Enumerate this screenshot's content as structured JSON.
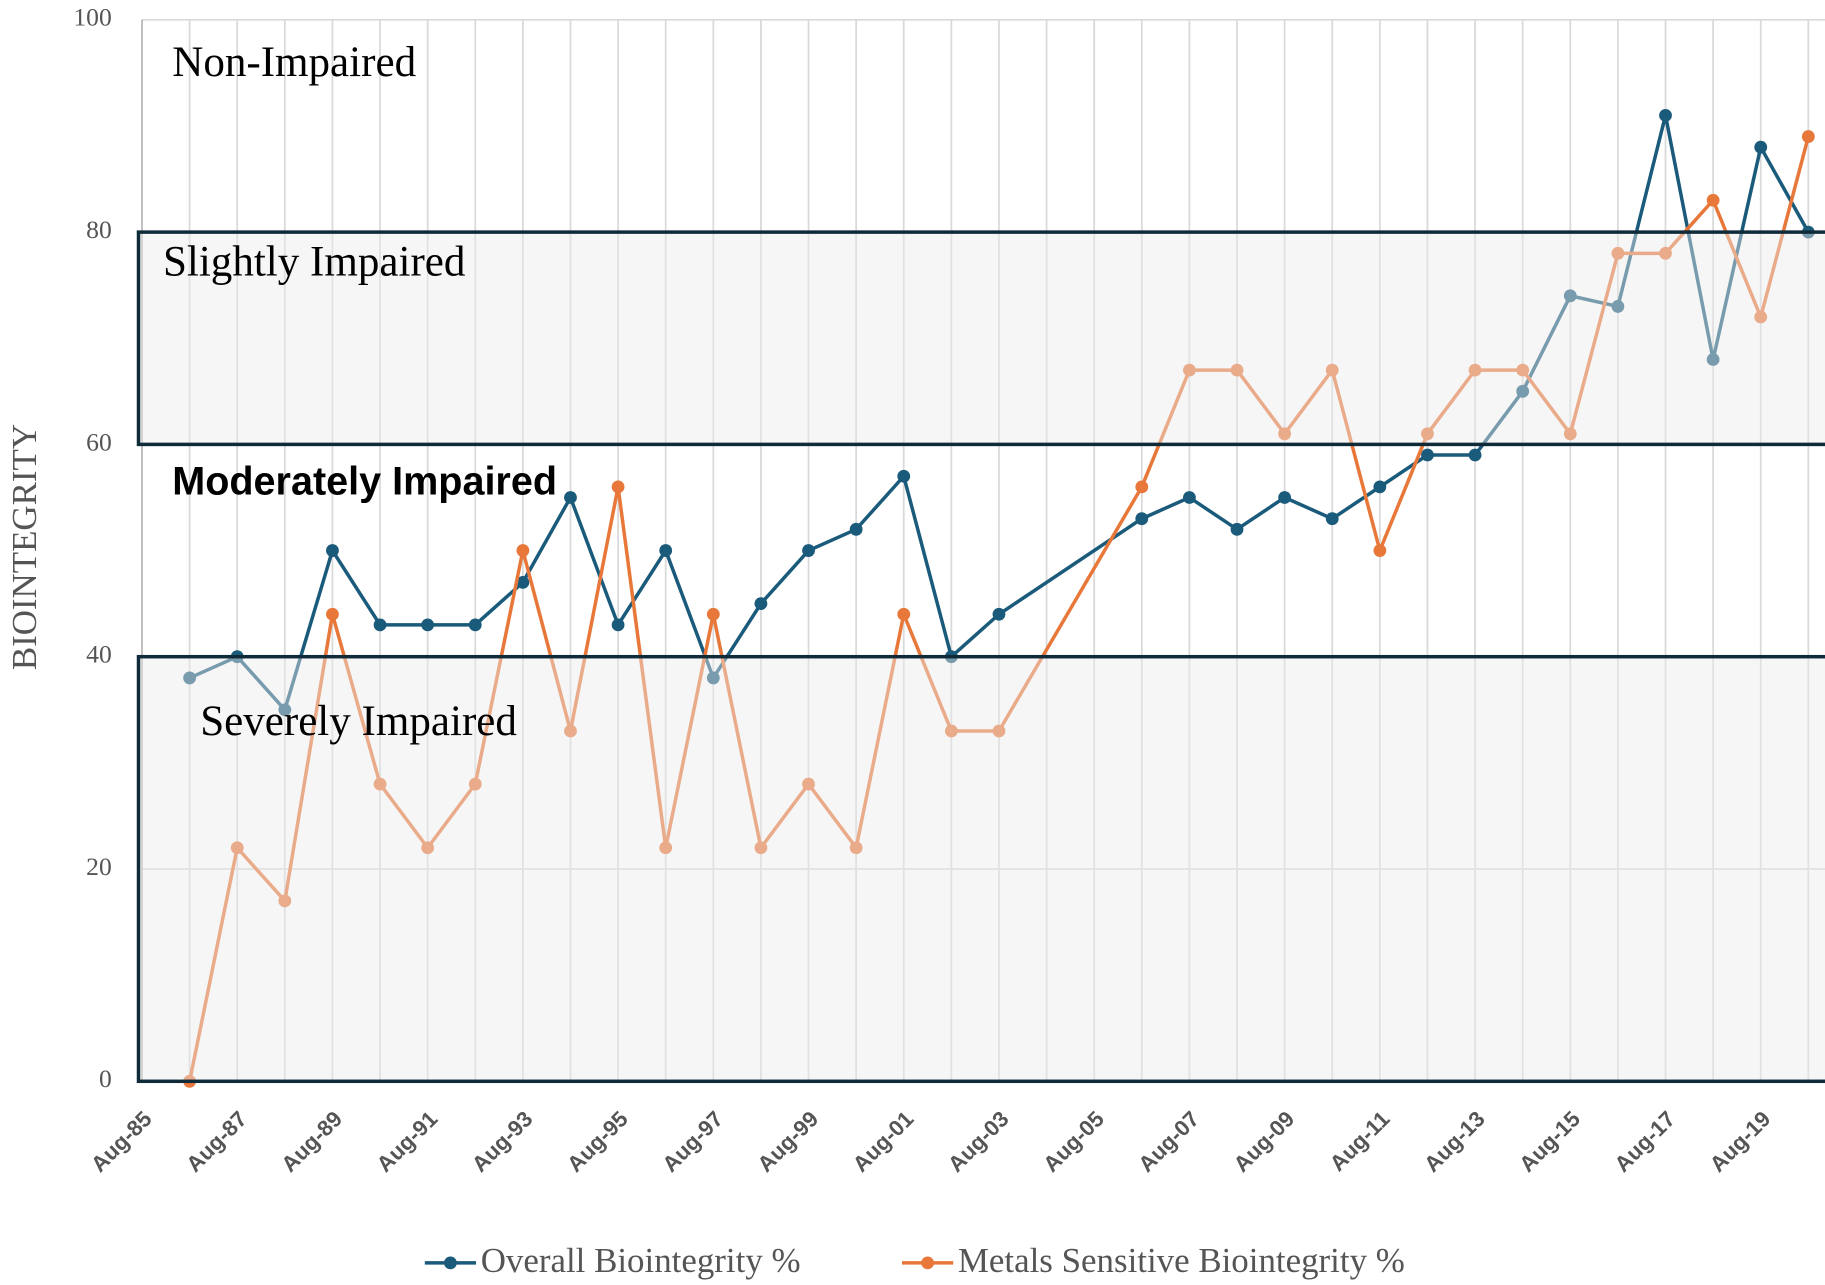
{
  "chart_data": {
    "type": "line",
    "y_label": "BIOINTEGRITY",
    "x": [
      1986,
      1987,
      1988,
      1989,
      1990,
      1991,
      1992,
      1993,
      1994,
      1995,
      1996,
      1997,
      1998,
      1999,
      2000,
      2001,
      2002,
      2003,
      2006,
      2007,
      2008,
      2009,
      2010,
      2011,
      2012,
      2013,
      2014,
      2015,
      2016,
      2017,
      2018,
      2019,
      2020
    ],
    "series": [
      {
        "name": "Overall Biointegrity %",
        "color": "#1a5a7a",
        "values": [
          38,
          40,
          35,
          50,
          43,
          43,
          43,
          47,
          55,
          43,
          50,
          38,
          45,
          50,
          52,
          57,
          40,
          44,
          53,
          55,
          52,
          55,
          53,
          56,
          59,
          59,
          65,
          74,
          73,
          91,
          68,
          88,
          80
        ]
      },
      {
        "name": "Metals Sensitive Biointegrity %",
        "color": "#e8773a",
        "values": [
          0,
          22,
          17,
          44,
          28,
          22,
          28,
          50,
          33,
          56,
          22,
          44,
          22,
          28,
          22,
          44,
          33,
          33,
          56,
          67,
          67,
          61,
          67,
          50,
          61,
          67,
          67,
          61,
          78,
          78,
          83,
          72,
          89
        ]
      }
    ],
    "zones": [
      {
        "label": "Non-Impaired",
        "range": [
          80,
          100
        ],
        "shaded": false
      },
      {
        "label": "Slightly Impaired",
        "range": [
          60,
          80
        ],
        "shaded": true
      },
      {
        "label": "Moderately Impaired",
        "range": [
          40,
          60
        ],
        "shaded": false
      },
      {
        "label": "Severely Impaired",
        "range": [
          0,
          40
        ],
        "shaded": true
      }
    ],
    "xlim": [
      1985,
      2020.35
    ],
    "xticks": [
      {
        "value": 1985,
        "label": "Aug-85"
      },
      {
        "value": 1987,
        "label": "Aug-87"
      },
      {
        "value": 1989,
        "label": "Aug-89"
      },
      {
        "value": 1991,
        "label": "Aug-91"
      },
      {
        "value": 1993,
        "label": "Aug-93"
      },
      {
        "value": 1995,
        "label": "Aug-95"
      },
      {
        "value": 1997,
        "label": "Aug-97"
      },
      {
        "value": 1999,
        "label": "Aug-99"
      },
      {
        "value": 2001,
        "label": "Aug-01"
      },
      {
        "value": 2003,
        "label": "Aug-03"
      },
      {
        "value": 2005,
        "label": "Aug-05"
      },
      {
        "value": 2007,
        "label": "Aug-07"
      },
      {
        "value": 2009,
        "label": "Aug-09"
      },
      {
        "value": 2011,
        "label": "Aug-11"
      },
      {
        "value": 2013,
        "label": "Aug-13"
      },
      {
        "value": 2015,
        "label": "Aug-15"
      },
      {
        "value": 2017,
        "label": "Aug-17"
      },
      {
        "value": 2019,
        "label": "Aug-19"
      }
    ],
    "x_minor_ticks": [
      1986,
      1988,
      1990,
      1992,
      1994,
      1996,
      1998,
      2000,
      2002,
      2004,
      2006,
      2008,
      2010,
      2012,
      2014,
      2016,
      2018,
      2020
    ],
    "ylim": [
      0,
      100
    ],
    "yticks": [
      0,
      20,
      40,
      60,
      80,
      100
    ],
    "grid": true,
    "legend": "bottom"
  }
}
